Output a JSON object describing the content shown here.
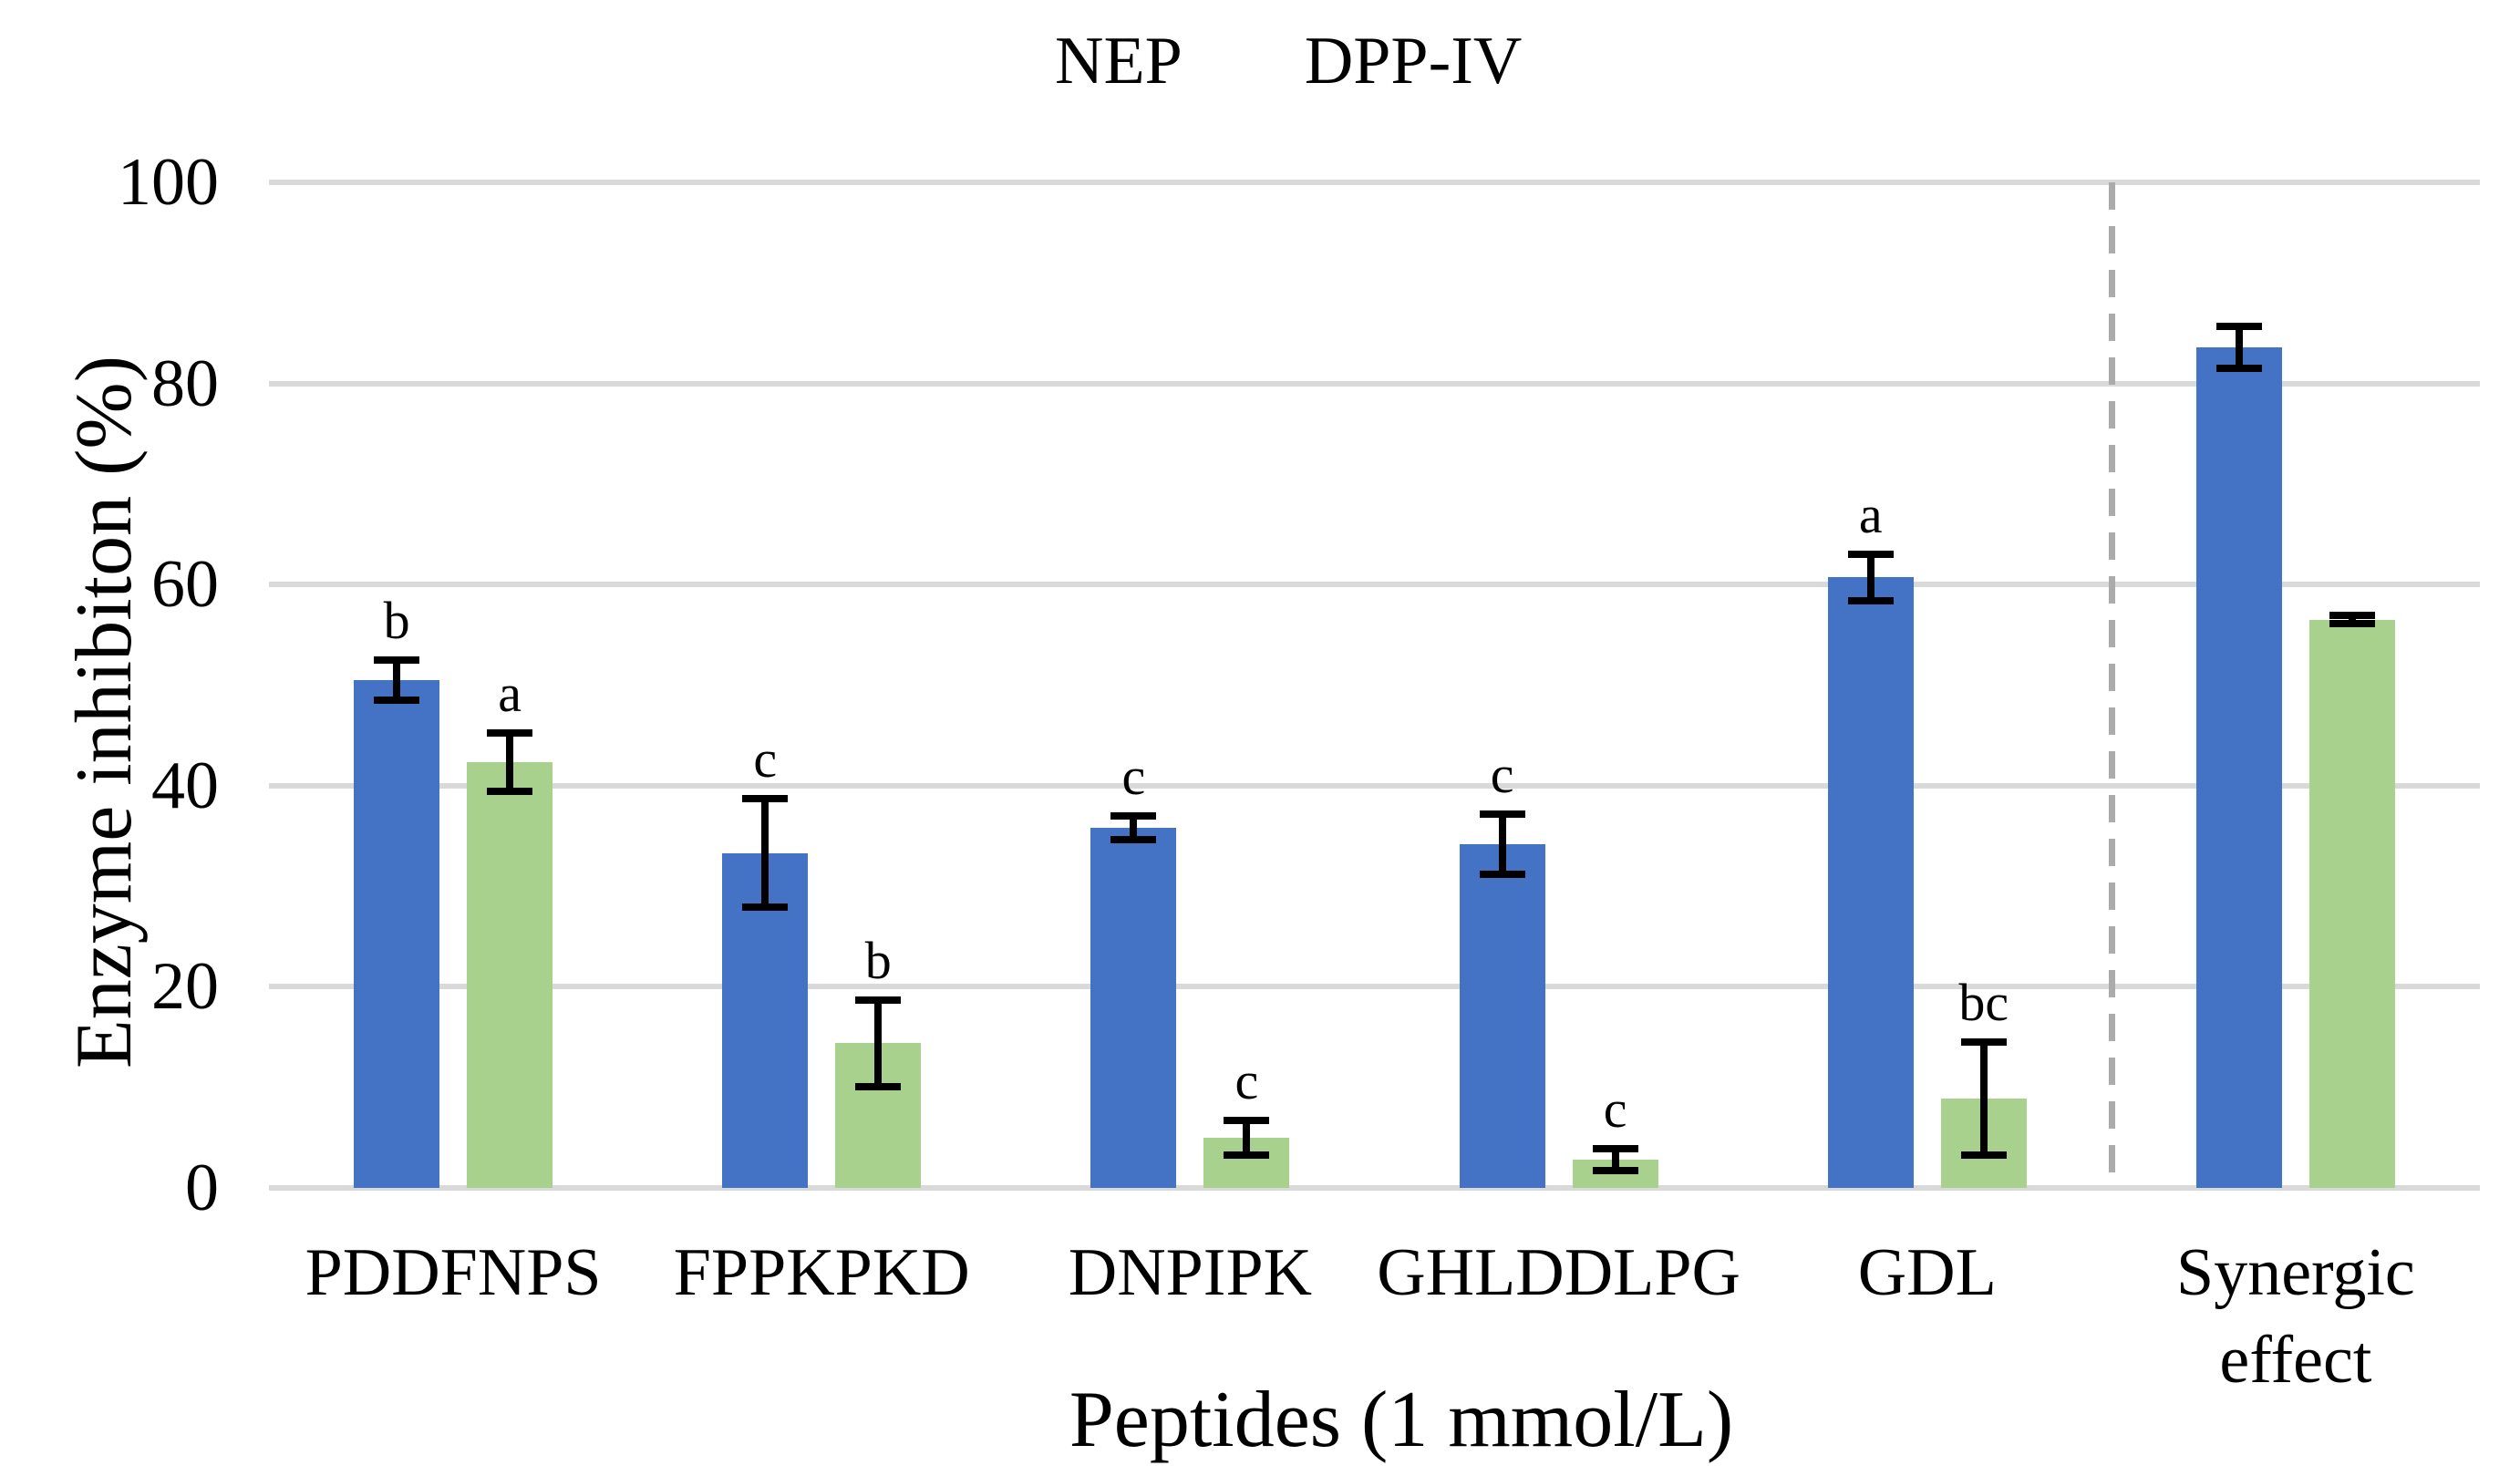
{
  "chart_data": {
    "type": "bar",
    "title": "",
    "xlabel": "Peptides (1 mmol/L)",
    "ylabel": "Enzyme inhibiton (%)",
    "ylim": [
      0,
      100
    ],
    "yticks": [
      0,
      20,
      40,
      60,
      80,
      100
    ],
    "grid": true,
    "legend_position": "top-center",
    "categories": [
      "PDDFNPS",
      "FPPKPKD",
      "DNPIPK",
      "GHLDDLPG",
      "GDL",
      "Synergic effect"
    ],
    "series": [
      {
        "name": "NEP",
        "color": "#4472C4",
        "values": [
          50.5,
          33.3,
          35.8,
          34.2,
          60.7,
          83.6
        ],
        "errors": [
          2.0,
          5.4,
          1.2,
          3.0,
          2.3,
          2.1
        ],
        "letters": [
          "b",
          "c",
          "c",
          "c",
          "a",
          ""
        ]
      },
      {
        "name": "DPP-IV",
        "color": "#A9D18E",
        "values": [
          42.3,
          14.4,
          5.0,
          2.8,
          8.9,
          56.5
        ],
        "errors": [
          2.9,
          4.3,
          1.7,
          1.1,
          5.6,
          0.4
        ],
        "letters": [
          "a",
          "b",
          "c",
          "c",
          "bc",
          ""
        ]
      }
    ],
    "separator": {
      "before_category": "Synergic effect",
      "style": "dashed",
      "color": "#ABABAB"
    },
    "error_bar_color": "#000000",
    "gridline_color": "#D9D9D9"
  }
}
